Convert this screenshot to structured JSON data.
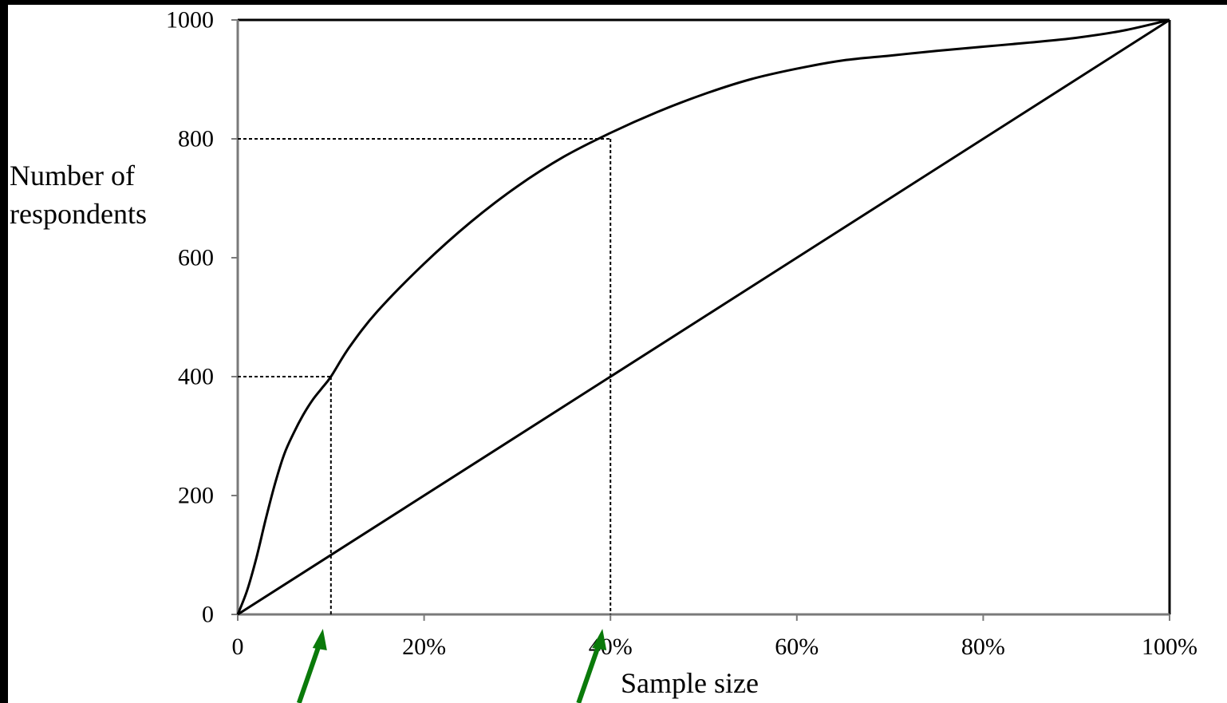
{
  "chart_data": {
    "type": "line",
    "xlabel": "Sample size",
    "ylabel": [
      "Number of",
      "respondents"
    ],
    "xlim": [
      0,
      100
    ],
    "ylim": [
      0,
      1000
    ],
    "x_ticks": [
      {
        "value": 0,
        "label": "0"
      },
      {
        "value": 20,
        "label": "20%"
      },
      {
        "value": 40,
        "label": "40%"
      },
      {
        "value": 60,
        "label": "60%"
      },
      {
        "value": 80,
        "label": "80%"
      },
      {
        "value": 100,
        "label": "100%"
      }
    ],
    "y_ticks": [
      {
        "value": 0,
        "label": "0"
      },
      {
        "value": 200,
        "label": "200"
      },
      {
        "value": 400,
        "label": "400"
      },
      {
        "value": 600,
        "label": "600"
      },
      {
        "value": 800,
        "label": "800"
      },
      {
        "value": 1000,
        "label": "1000"
      }
    ],
    "series": [
      {
        "style": "solid",
        "x": [
          0,
          1,
          2,
          3,
          4,
          5,
          6,
          7,
          8,
          9,
          10,
          12,
          15,
          20,
          25,
          30,
          35,
          40,
          45,
          50,
          55,
          60,
          65,
          70,
          75,
          80,
          85,
          90,
          95,
          100
        ],
        "y": [
          0,
          40,
          95,
          160,
          220,
          270,
          305,
          335,
          360,
          380,
          400,
          450,
          510,
          590,
          660,
          720,
          770,
          810,
          845,
          875,
          900,
          918,
          932,
          940,
          948,
          955,
          962,
          970,
          982,
          1000
        ]
      },
      {
        "style": "solid",
        "x": [
          0,
          100
        ],
        "y": [
          0,
          1000
        ]
      }
    ],
    "reference_lines": [
      {
        "x": 10,
        "y": 400,
        "style": "dashed"
      },
      {
        "x": 40,
        "y": 800,
        "style": "dashed"
      }
    ],
    "annotations": [
      {
        "type": "arrow",
        "color": "#0a7a0a",
        "points_to_x": 10
      },
      {
        "type": "arrow",
        "color": "#0a7a0a",
        "points_to_x": 40
      }
    ],
    "grid": false,
    "legend": "none"
  },
  "colors": {
    "background": "#000000",
    "panel": "#ffffff",
    "line": "#000000",
    "arrow": "#0a7a0a"
  }
}
